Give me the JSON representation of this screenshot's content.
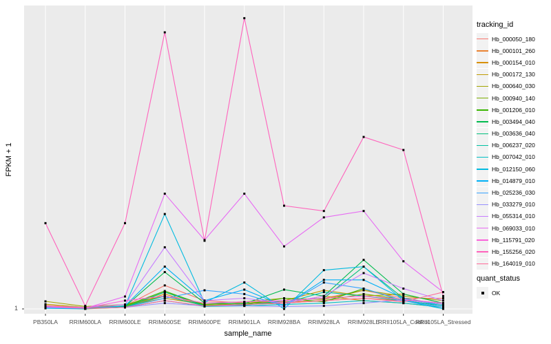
{
  "y_axis": {
    "label": "FPKM + 1",
    "tick": "1"
  },
  "x_axis": {
    "label": "sample_name"
  },
  "legend": {
    "title": "tracking_id"
  },
  "quant_legend": {
    "title": "quant_status",
    "entries": [
      {
        "label": "OK"
      }
    ]
  },
  "style": {
    "panel_bg": "#ebebeb",
    "gridline": "#ffffff",
    "marker": "#000000",
    "tick_color": "#333333",
    "key_bg": "#f2f2f2"
  },
  "chart_data": {
    "type": "line",
    "title": "",
    "xlabel": "sample_name",
    "ylabel": "FPKM + 1",
    "y_scale": "log10",
    "ylim": [
      1,
      12000
    ],
    "y_ticks": [
      1
    ],
    "grid": "vertical-major-white-on-gray",
    "legend_position": "right",
    "marker": "black-square",
    "x_categories": [
      "PB350LA",
      "RRIM600LA",
      "RRIM600LE",
      "RRIM600SE",
      "RRIM600PE",
      "RRIM901LA",
      "RRIM928BA",
      "RRIM928LA",
      "RRIM928LE",
      "RRII105LA_Control",
      "RRII105LA_Stressed"
    ],
    "quant_status_all_points": "OK",
    "series": [
      {
        "name": "Hb_000050_180",
        "color": "#F8766D",
        "values": [
          1.1,
          1.05,
          1.1,
          2.1,
          1.3,
          1.2,
          1.3,
          1.4,
          1.8,
          1.4,
          1.4
        ]
      },
      {
        "name": "Hb_000101_260",
        "color": "#EA8331",
        "values": [
          1.15,
          1.05,
          1.1,
          1.5,
          1.1,
          1.2,
          1.25,
          1.3,
          1.4,
          1.3,
          1.1
        ]
      },
      {
        "name": "Hb_000154_010",
        "color": "#D89000",
        "values": [
          1.05,
          1.0,
          1.05,
          1.6,
          1.1,
          1.15,
          1.2,
          1.5,
          1.3,
          1.2,
          1.05
        ]
      },
      {
        "name": "Hb_000172_130",
        "color": "#C09B00",
        "values": [
          1.16,
          1.05,
          1.1,
          1.4,
          1.15,
          1.2,
          1.3,
          1.8,
          1.5,
          1.6,
          1.2
        ]
      },
      {
        "name": "Hb_000640_030",
        "color": "#A3A500",
        "values": [
          1.27,
          1.08,
          1.15,
          1.5,
          1.2,
          1.25,
          1.4,
          1.35,
          1.8,
          1.5,
          1.3
        ]
      },
      {
        "name": "Hb_000940_140",
        "color": "#7CAE00",
        "values": [
          1.1,
          1.02,
          1.08,
          1.7,
          1.15,
          1.2,
          1.2,
          1.3,
          1.6,
          1.35,
          1.15
        ]
      },
      {
        "name": "Hb_001206_010",
        "color": "#39B600",
        "values": [
          1.05,
          1.02,
          1.1,
          1.76,
          1.12,
          1.15,
          1.4,
          1.25,
          1.9,
          1.3,
          1.1
        ]
      },
      {
        "name": "Hb_003494_040",
        "color": "#00BB4E",
        "values": [
          1.1,
          1.03,
          1.08,
          3.2,
          1.2,
          1.18,
          1.84,
          1.5,
          4.7,
          1.6,
          1.2
        ]
      },
      {
        "name": "Hb_003636_040",
        "color": "#00BF7D",
        "values": [
          1.06,
          1.02,
          1.05,
          1.7,
          1.1,
          1.12,
          1.3,
          1.4,
          3.8,
          1.4,
          1.15
        ]
      },
      {
        "name": "Hb_006237_020",
        "color": "#00C1A3",
        "values": [
          1.08,
          1.02,
          1.06,
          1.5,
          1.1,
          1.15,
          1.2,
          1.7,
          1.5,
          1.3,
          1.1
        ]
      },
      {
        "name": "Hb_007042_010",
        "color": "#00BFC4",
        "values": [
          1.05,
          1.01,
          1.05,
          1.3,
          1.08,
          1.1,
          1.15,
          1.2,
          1.3,
          1.2,
          1.05
        ]
      },
      {
        "name": "Hb_012150_060",
        "color": "#00BAE0",
        "values": [
          1.02,
          1.0,
          1.1,
          20.0,
          1.22,
          2.3,
          1.0,
          3.4,
          3.8,
          1.3,
          1.0
        ]
      },
      {
        "name": "Hb_014879_010",
        "color": "#00B0F6",
        "values": [
          1.05,
          1.02,
          1.1,
          3.8,
          1.3,
          1.84,
          1.1,
          2.5,
          2.5,
          1.4,
          1.1
        ]
      },
      {
        "name": "Hb_025236_030",
        "color": "#35A2FF",
        "values": [
          1.04,
          1.02,
          1.05,
          1.4,
          1.8,
          1.6,
          1.1,
          2.3,
          1.9,
          1.3,
          1.05
        ]
      },
      {
        "name": "Hb_033279_010",
        "color": "#9590FF",
        "values": [
          1.05,
          1.02,
          1.05,
          1.2,
          1.1,
          1.1,
          1.08,
          1.1,
          1.2,
          1.33,
          1.16
        ]
      },
      {
        "name": "Hb_055314_010",
        "color": "#C77CFF",
        "values": [
          1.1,
          1.05,
          1.15,
          7.0,
          1.3,
          1.4,
          1.2,
          1.5,
          3.1,
          1.9,
          1.3
        ]
      },
      {
        "name": "Hb_069033_010",
        "color": "#E76BF3",
        "values": [
          1.07,
          1.02,
          1.48,
          38.0,
          8.8,
          38.0,
          7.2,
          18.0,
          22.0,
          4.5,
          1.7
        ]
      },
      {
        "name": "Hb_115791_020",
        "color": "#FA62DB",
        "values": [
          1.1,
          1.03,
          1.3,
          1.5,
          1.2,
          1.25,
          1.3,
          1.4,
          1.5,
          1.35,
          1.2
        ]
      },
      {
        "name": "Hb_155256_020",
        "color": "#FF62BC",
        "values": [
          15.0,
          1.1,
          15.0,
          6200,
          8.6,
          9700,
          26.0,
          22.0,
          228,
          151,
          1.5
        ]
      },
      {
        "name": "Hb_164019_010",
        "color": "#FF6A98",
        "values": [
          1.1,
          1.02,
          1.05,
          1.3,
          1.1,
          1.15,
          1.2,
          1.3,
          1.4,
          1.25,
          1.7
        ]
      }
    ]
  }
}
